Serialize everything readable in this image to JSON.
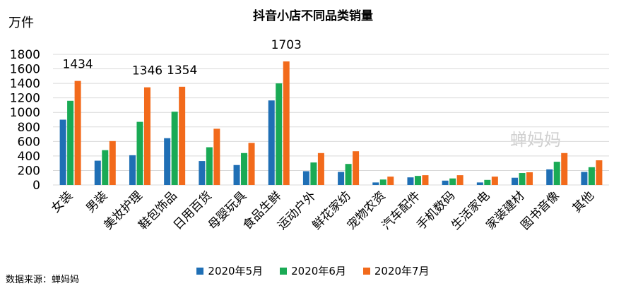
{
  "unit_label": "万件",
  "source_text": "数据来源：蝉妈妈",
  "watermark": "蝉妈妈",
  "colors": [
    "#1f6fb5",
    "#1aaa55",
    "#f26a1b"
  ],
  "chart_data": {
    "type": "bar",
    "title": "抖音小店不同品类销量",
    "xlabel": "",
    "ylabel": "万件",
    "ylim": [
      0,
      1800
    ],
    "yticks": [
      0,
      200,
      400,
      600,
      800,
      1000,
      1200,
      1400,
      1600,
      1800
    ],
    "grid": true,
    "legend_position": "bottom",
    "categories": [
      "女装",
      "男装",
      "美妆护理",
      "鞋包饰品",
      "日用百货",
      "母婴玩具",
      "食品生鲜",
      "运动户外",
      "鲜花家纺",
      "宠物农资",
      "汽车配件",
      "手机数码",
      "生活家电",
      "家装建材",
      "图书音像",
      "其他"
    ],
    "series": [
      {
        "name": "2020年5月",
        "values": [
          900,
          335,
          410,
          645,
          330,
          275,
          1165,
          190,
          180,
          35,
          105,
          60,
          35,
          100,
          215,
          180
        ]
      },
      {
        "name": "2020年6月",
        "values": [
          1160,
          480,
          870,
          1010,
          520,
          440,
          1400,
          310,
          290,
          75,
          125,
          90,
          70,
          165,
          320,
          245
        ]
      },
      {
        "name": "2020年7月",
        "values": [
          1434,
          605,
          1346,
          1354,
          775,
          580,
          1703,
          440,
          465,
          115,
          135,
          135,
          115,
          175,
          440,
          340
        ]
      }
    ],
    "annotations": [
      {
        "category": "女装",
        "series": 2,
        "text": "1434"
      },
      {
        "category": "美妆护理",
        "series": 2,
        "text": "1346"
      },
      {
        "category": "鞋包饰品",
        "series": 2,
        "text": "1354"
      },
      {
        "category": "食品生鲜",
        "series": 2,
        "text": "1703"
      }
    ]
  }
}
